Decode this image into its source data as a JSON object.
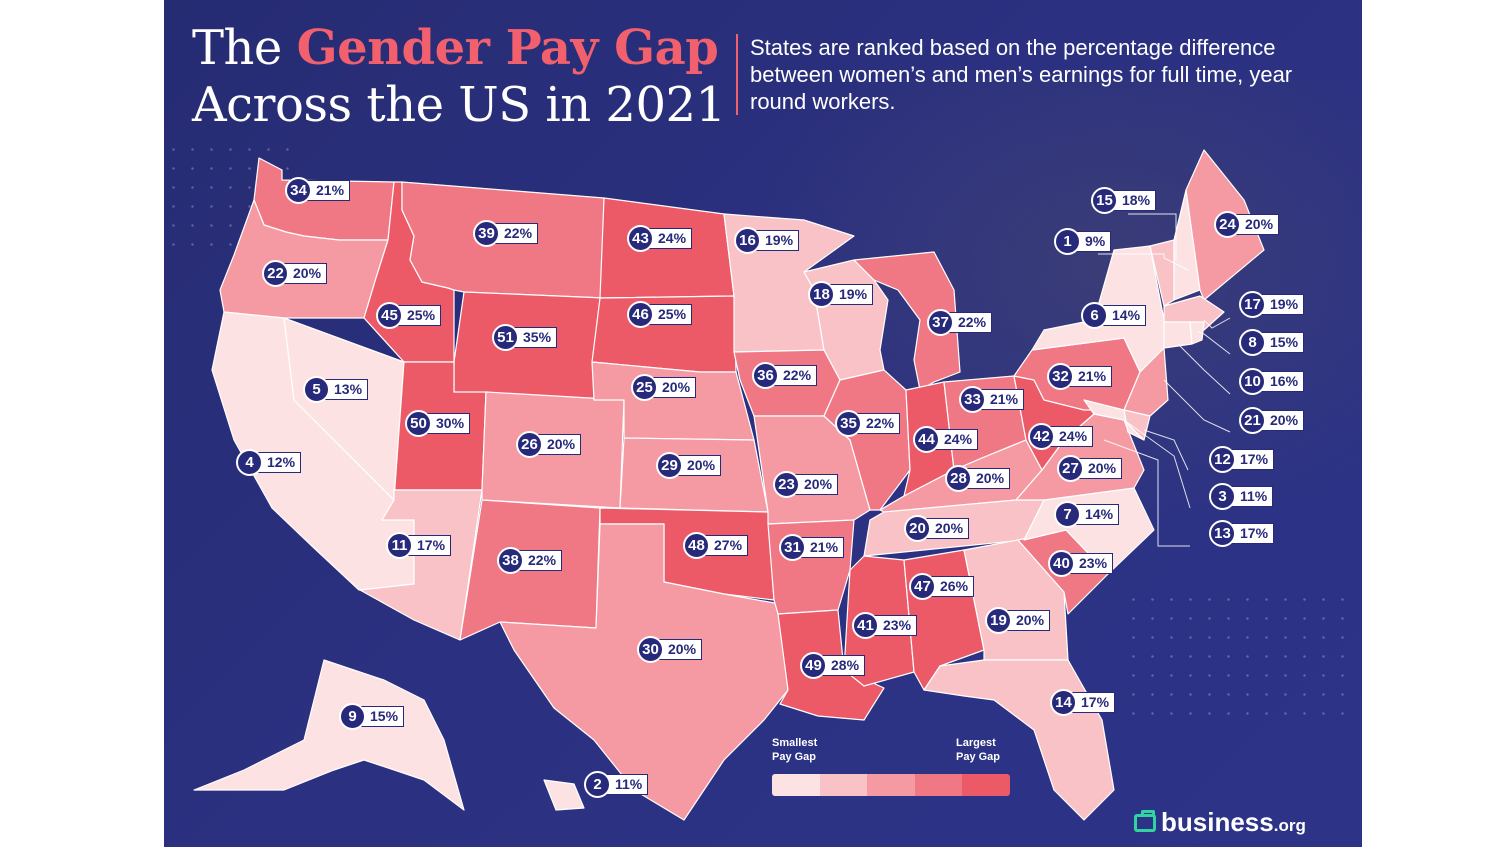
{
  "title": {
    "line1_plain": "The ",
    "line1_accent": "Gender Pay Gap",
    "line2": "Across the US in 2021"
  },
  "subtitle": "States are ranked based on the percentage difference between women’s and men’s earnings for full time, year round workers.",
  "legend": {
    "smallest": "Smallest Pay Gap",
    "largest": "Largest Pay Gap",
    "colors": [
      "#fde2e4",
      "#f9c2c7",
      "#f59aa3",
      "#f07884",
      "#ec5a68"
    ]
  },
  "colors": {
    "background": "#2b3080",
    "badge": "#27297a",
    "accent": "#f2606e",
    "logo_icon": "#2fd4a0"
  },
  "logo": {
    "name": "business",
    "tld": ".org"
  },
  "states": [
    {
      "state": "WA",
      "rank": 34,
      "gap": "21%"
    },
    {
      "state": "OR",
      "rank": 22,
      "gap": "20%"
    },
    {
      "state": "CA",
      "rank": 4,
      "gap": "12%"
    },
    {
      "state": "NV",
      "rank": 5,
      "gap": "13%"
    },
    {
      "state": "ID",
      "rank": 45,
      "gap": "25%"
    },
    {
      "state": "MT",
      "rank": 39,
      "gap": "22%"
    },
    {
      "state": "WY",
      "rank": 51,
      "gap": "35%"
    },
    {
      "state": "UT",
      "rank": 50,
      "gap": "30%"
    },
    {
      "state": "AZ",
      "rank": 11,
      "gap": "17%"
    },
    {
      "state": "CO",
      "rank": 26,
      "gap": "20%"
    },
    {
      "state": "NM",
      "rank": 38,
      "gap": "22%"
    },
    {
      "state": "ND",
      "rank": 43,
      "gap": "24%"
    },
    {
      "state": "SD",
      "rank": 46,
      "gap": "25%"
    },
    {
      "state": "NE",
      "rank": 25,
      "gap": "20%"
    },
    {
      "state": "KS",
      "rank": 29,
      "gap": "20%"
    },
    {
      "state": "OK",
      "rank": 48,
      "gap": "27%"
    },
    {
      "state": "TX",
      "rank": 30,
      "gap": "20%"
    },
    {
      "state": "MN",
      "rank": 16,
      "gap": "19%"
    },
    {
      "state": "IA",
      "rank": 36,
      "gap": "22%"
    },
    {
      "state": "MO",
      "rank": 23,
      "gap": "20%"
    },
    {
      "state": "AR",
      "rank": 31,
      "gap": "21%"
    },
    {
      "state": "LA",
      "rank": 49,
      "gap": "28%"
    },
    {
      "state": "WI",
      "rank": 18,
      "gap": "19%"
    },
    {
      "state": "IL",
      "rank": 35,
      "gap": "22%"
    },
    {
      "state": "MI",
      "rank": 37,
      "gap": "22%"
    },
    {
      "state": "IN",
      "rank": 44,
      "gap": "24%"
    },
    {
      "state": "OH",
      "rank": 33,
      "gap": "21%"
    },
    {
      "state": "KY",
      "rank": 28,
      "gap": "20%"
    },
    {
      "state": "TN",
      "rank": 20,
      "gap": "20%"
    },
    {
      "state": "MS",
      "rank": 41,
      "gap": "23%"
    },
    {
      "state": "AL",
      "rank": 47,
      "gap": "26%"
    },
    {
      "state": "GA",
      "rank": 19,
      "gap": "20%"
    },
    {
      "state": "FL",
      "rank": 14,
      "gap": "17%"
    },
    {
      "state": "SC",
      "rank": 40,
      "gap": "23%"
    },
    {
      "state": "NC",
      "rank": 7,
      "gap": "14%"
    },
    {
      "state": "VA",
      "rank": 27,
      "gap": "20%"
    },
    {
      "state": "WV",
      "rank": 42,
      "gap": "24%"
    },
    {
      "state": "PA",
      "rank": 32,
      "gap": "21%"
    },
    {
      "state": "NY",
      "rank": 6,
      "gap": "14%"
    },
    {
      "state": "VT",
      "rank": 15,
      "gap": "18%"
    },
    {
      "state": "NH",
      "rank": 1,
      "gap": "9%"
    },
    {
      "state": "ME",
      "rank": 24,
      "gap": "20%"
    },
    {
      "state": "MA",
      "rank": 17,
      "gap": "19%"
    },
    {
      "state": "RI",
      "rank": 8,
      "gap": "15%"
    },
    {
      "state": "CT",
      "rank": 10,
      "gap": "16%"
    },
    {
      "state": "NJ",
      "rank": 21,
      "gap": "20%"
    },
    {
      "state": "DE",
      "rank": 12,
      "gap": "17%"
    },
    {
      "state": "MD",
      "rank": 3,
      "gap": "11%"
    },
    {
      "state": "DC",
      "rank": 13,
      "gap": "17%"
    },
    {
      "state": "AK",
      "rank": 9,
      "gap": "15%"
    },
    {
      "state": "HI",
      "rank": 2,
      "gap": "11%"
    }
  ]
}
